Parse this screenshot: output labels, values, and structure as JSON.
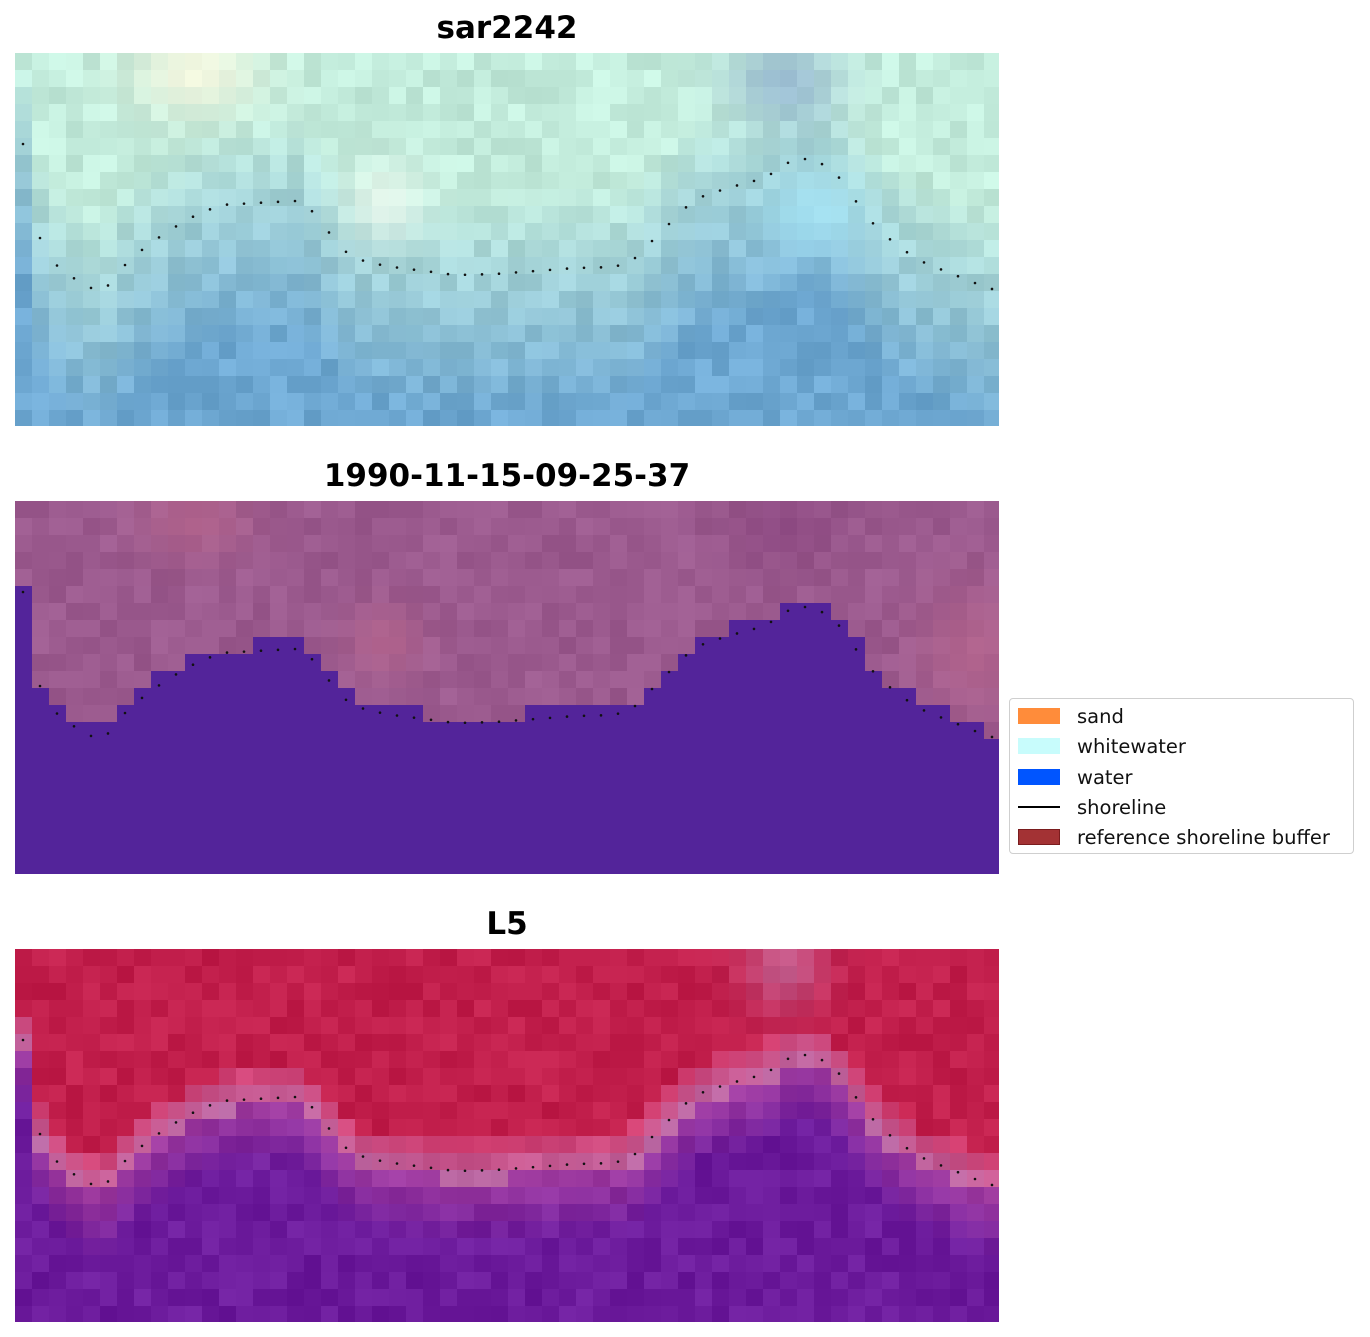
{
  "panels": [
    {
      "title": "sar2242",
      "style": "sar"
    },
    {
      "title": "1990-11-15-09-25-37",
      "style": "classified"
    },
    {
      "title": "L5",
      "style": "index"
    }
  ],
  "legend": {
    "items": [
      {
        "label": "sand",
        "color": "#ff8c3a",
        "kind": "patch"
      },
      {
        "label": "whitewater",
        "color": "#c8fcfc",
        "kind": "patch"
      },
      {
        "label": "water",
        "color": "#0055ff",
        "kind": "patch"
      },
      {
        "label": "shoreline",
        "color": "#000000",
        "kind": "line"
      },
      {
        "label": "reference shoreline buffer",
        "color": "#a33234",
        "kind": "patch"
      }
    ]
  },
  "colors": {
    "classified_water": "#53249a",
    "classified_land": "#9b5a8e",
    "sar_light": "#c3ecdc",
    "sar_dark": "#6ea8d2",
    "index_land": "#c21f4c",
    "index_water": "#6c1b9c"
  }
}
